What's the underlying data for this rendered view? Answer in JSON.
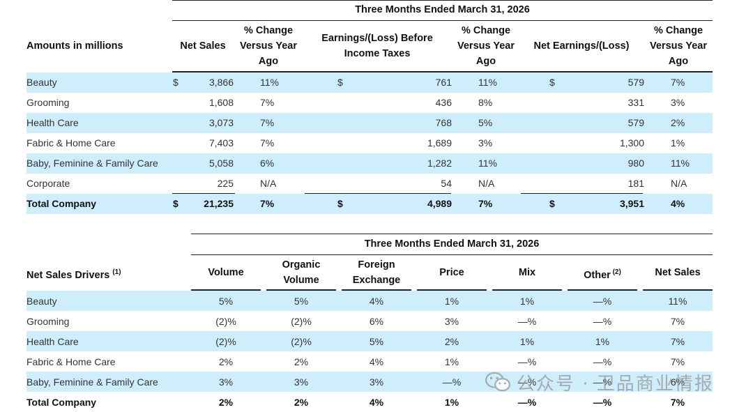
{
  "table1": {
    "title": "Three Months Ended March 31, 2026",
    "row_header": "Amounts in millions",
    "col_net_sales": "Net Sales",
    "col_pct1": "% Change\nVersus Year\nAgo",
    "col_earnings": "Earnings/(Loss) Before\nIncome Taxes",
    "col_pct2": "% Change\nVersus Year\nAgo",
    "col_net_earnings": "Net Earnings/(Loss)",
    "col_pct3": "% Change\nVersus Year\nAgo",
    "currency": "$",
    "rows": [
      {
        "label": "Beauty",
        "net_sales": "3,866",
        "ns_pct": "11%",
        "ebit": "761",
        "ebit_pct": "11%",
        "ne": "579",
        "ne_pct": "7%"
      },
      {
        "label": "Grooming",
        "net_sales": "1,608",
        "ns_pct": "7%",
        "ebit": "436",
        "ebit_pct": "8%",
        "ne": "331",
        "ne_pct": "3%"
      },
      {
        "label": "Health Care",
        "net_sales": "3,073",
        "ns_pct": "7%",
        "ebit": "768",
        "ebit_pct": "5%",
        "ne": "579",
        "ne_pct": "2%"
      },
      {
        "label": "Fabric & Home Care",
        "net_sales": "7,403",
        "ns_pct": "7%",
        "ebit": "1,689",
        "ebit_pct": "3%",
        "ne": "1,300",
        "ne_pct": "1%"
      },
      {
        "label": "Baby, Feminine & Family Care",
        "net_sales": "5,058",
        "ns_pct": "6%",
        "ebit": "1,282",
        "ebit_pct": "11%",
        "ne": "980",
        "ne_pct": "11%"
      },
      {
        "label": "Corporate",
        "net_sales": "225",
        "ns_pct": "N/A",
        "ebit": "54",
        "ebit_pct": "N/A",
        "ne": "181",
        "ne_pct": "N/A"
      }
    ],
    "total": {
      "label": "Total Company",
      "net_sales": "21,235",
      "ns_pct": "7%",
      "ebit": "4,989",
      "ebit_pct": "7%",
      "ne": "3,951",
      "ne_pct": "4%"
    }
  },
  "table2": {
    "title": "Three Months Ended March 31, 2026",
    "row_header": "Net Sales Drivers",
    "row_header_sup": "(1)",
    "cols": [
      "Volume",
      "Organic\nVolume",
      "Foreign\nExchange",
      "Price",
      "Mix",
      "Other",
      "Net Sales"
    ],
    "other_sup": "(2)",
    "rows": [
      {
        "label": "Beauty",
        "values": [
          "5%",
          "5%",
          "4%",
          "1%",
          "1%",
          "—%",
          "11%"
        ]
      },
      {
        "label": "Grooming",
        "values": [
          "(2)%",
          "(2)%",
          "6%",
          "3%",
          "—%",
          "—%",
          "7%"
        ]
      },
      {
        "label": "Health Care",
        "values": [
          "(2)%",
          "(2)%",
          "5%",
          "2%",
          "1%",
          "1%",
          "7%"
        ]
      },
      {
        "label": "Fabric & Home Care",
        "values": [
          "2%",
          "2%",
          "4%",
          "1%",
          "—%",
          "—%",
          "7%"
        ]
      },
      {
        "label": "Baby, Feminine & Family Care",
        "values": [
          "3%",
          "3%",
          "3%",
          "—%",
          "—%",
          "—%",
          "6%"
        ]
      }
    ],
    "total": {
      "label": "Total Company",
      "values": [
        "2%",
        "2%",
        "4%",
        "1%",
        "—%",
        "—%",
        "7%"
      ]
    }
  },
  "watermark": {
    "text": "公众号 · 卫品商业情报",
    "icon": "wechat-icon"
  }
}
